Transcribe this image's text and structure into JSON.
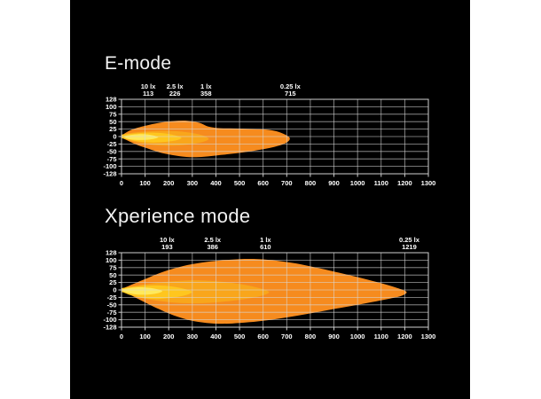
{
  "page": {
    "background": "#ffffff",
    "panel_background": "#000000",
    "grid_color": "#d8d8d8",
    "border_color": "#cfcfcf",
    "label_color": "#ffffff",
    "muted_label_color": "#5f5f5f"
  },
  "chart_data": [
    {
      "type": "area",
      "title": "E-mode",
      "x_ticks": [
        0,
        100,
        200,
        300,
        400,
        500,
        600,
        700,
        800,
        900,
        1000,
        1100,
        1200,
        1300
      ],
      "y_ticks": [
        128,
        100,
        75,
        50,
        25,
        0,
        -25,
        -50,
        -75,
        -100,
        -128
      ],
      "muted_first_y_tick": false,
      "lux_markers": [
        {
          "label": "10 lx",
          "value": 113
        },
        {
          "label": "2.5 lx",
          "value": 226
        },
        {
          "label": "1 lx",
          "value": 358
        },
        {
          "label": "0.25 lx",
          "value": 715
        }
      ],
      "contours": [
        {
          "label": "0.25 lx",
          "color": "#F68B1E",
          "points": [
            [
              0,
              3
            ],
            [
              40,
              22
            ],
            [
              100,
              36
            ],
            [
              160,
              46
            ],
            [
              220,
              52
            ],
            [
              280,
              53
            ],
            [
              330,
              46
            ],
            [
              370,
              33
            ],
            [
              420,
              28
            ],
            [
              480,
              27
            ],
            [
              540,
              26
            ],
            [
              600,
              24
            ],
            [
              650,
              19
            ],
            [
              695,
              6
            ],
            [
              713,
              -8
            ],
            [
              690,
              -24
            ],
            [
              630,
              -38
            ],
            [
              560,
              -48
            ],
            [
              490,
              -56
            ],
            [
              420,
              -62
            ],
            [
              350,
              -68
            ],
            [
              290,
              -69
            ],
            [
              230,
              -64
            ],
            [
              170,
              -55
            ],
            [
              110,
              -40
            ],
            [
              60,
              -26
            ],
            [
              20,
              -11
            ],
            [
              0,
              -3
            ]
          ]
        },
        {
          "label": "1 lx",
          "color": "#F9A61B",
          "points": [
            [
              0,
              6
            ],
            [
              50,
              13
            ],
            [
              110,
              17
            ],
            [
              170,
              19
            ],
            [
              230,
              18
            ],
            [
              280,
              14
            ],
            [
              330,
              7
            ],
            [
              362,
              -2
            ],
            [
              368,
              -10
            ],
            [
              340,
              -19
            ],
            [
              290,
              -26
            ],
            [
              230,
              -30
            ],
            [
              170,
              -30
            ],
            [
              110,
              -26
            ],
            [
              60,
              -19
            ],
            [
              20,
              -10
            ],
            [
              0,
              -4
            ]
          ]
        },
        {
          "label": "2.5 lx",
          "color": "#FFC61E",
          "points": [
            [
              0,
              5
            ],
            [
              50,
              10
            ],
            [
              110,
              13
            ],
            [
              165,
              12
            ],
            [
              210,
              7
            ],
            [
              245,
              0
            ],
            [
              253,
              -6
            ],
            [
              230,
              -13
            ],
            [
              185,
              -18
            ],
            [
              135,
              -20
            ],
            [
              85,
              -18
            ],
            [
              40,
              -12
            ],
            [
              10,
              -7
            ],
            [
              0,
              -4
            ]
          ]
        },
        {
          "label": "10 lx",
          "color": "#FFE95C",
          "points": [
            [
              12,
              1
            ],
            [
              45,
              6
            ],
            [
              85,
              8
            ],
            [
              120,
              6
            ],
            [
              148,
              1
            ],
            [
              155,
              -3
            ],
            [
              135,
              -8
            ],
            [
              100,
              -11
            ],
            [
              60,
              -11
            ],
            [
              28,
              -8
            ],
            [
              12,
              -3
            ]
          ]
        }
      ]
    },
    {
      "type": "area",
      "title": "Xperience mode",
      "x_ticks": [
        0,
        100,
        200,
        300,
        400,
        500,
        600,
        700,
        800,
        900,
        1000,
        1100,
        1200,
        1300
      ],
      "y_ticks": [
        128,
        100,
        75,
        50,
        25,
        0,
        -25,
        -50,
        -75,
        -100,
        -128
      ],
      "muted_first_y_tick": true,
      "lux_markers": [
        {
          "label": "10 lx",
          "value": 193
        },
        {
          "label": "2.5 lx",
          "value": 386
        },
        {
          "label": "1 lx",
          "value": 610
        },
        {
          "label": "0.25 lx",
          "value": 1219
        }
      ],
      "contours": [
        {
          "label": "0.25 lx",
          "color": "#F68B1E",
          "points": [
            [
              0,
              2
            ],
            [
              50,
              20
            ],
            [
              110,
              40
            ],
            [
              180,
              62
            ],
            [
              260,
              80
            ],
            [
              340,
              92
            ],
            [
              420,
              99
            ],
            [
              500,
              104
            ],
            [
              580,
              104
            ],
            [
              660,
              98
            ],
            [
              740,
              89
            ],
            [
              820,
              76
            ],
            [
              900,
              62
            ],
            [
              980,
              47
            ],
            [
              1060,
              31
            ],
            [
              1130,
              16
            ],
            [
              1185,
              2
            ],
            [
              1208,
              -8
            ],
            [
              1185,
              -20
            ],
            [
              1130,
              -30
            ],
            [
              1060,
              -41
            ],
            [
              980,
              -53
            ],
            [
              900,
              -64
            ],
            [
              820,
              -76
            ],
            [
              740,
              -87
            ],
            [
              660,
              -97
            ],
            [
              580,
              -106
            ],
            [
              500,
              -112
            ],
            [
              430,
              -115
            ],
            [
              360,
              -112
            ],
            [
              290,
              -102
            ],
            [
              220,
              -85
            ],
            [
              160,
              -65
            ],
            [
              110,
              -46
            ],
            [
              65,
              -28
            ],
            [
              25,
              -11
            ],
            [
              0,
              -3
            ]
          ]
        },
        {
          "label": "1 lx",
          "color": "#F9A61B",
          "points": [
            [
              0,
              5
            ],
            [
              70,
              15
            ],
            [
              150,
              24
            ],
            [
              240,
              30
            ],
            [
              330,
              32
            ],
            [
              420,
              28
            ],
            [
              500,
              20
            ],
            [
              570,
              9
            ],
            [
              618,
              -3
            ],
            [
              620,
              -12
            ],
            [
              575,
              -23
            ],
            [
              500,
              -33
            ],
            [
              410,
              -41
            ],
            [
              320,
              -45
            ],
            [
              230,
              -43
            ],
            [
              150,
              -36
            ],
            [
              80,
              -26
            ],
            [
              30,
              -13
            ],
            [
              0,
              -5
            ]
          ]
        },
        {
          "label": "2.5 lx",
          "color": "#FFC61E",
          "points": [
            [
              0,
              5
            ],
            [
              55,
              11
            ],
            [
              120,
              15
            ],
            [
              185,
              14
            ],
            [
              240,
              8
            ],
            [
              285,
              -1
            ],
            [
              298,
              -8
            ],
            [
              270,
              -18
            ],
            [
              215,
              -26
            ],
            [
              150,
              -30
            ],
            [
              90,
              -27
            ],
            [
              40,
              -18
            ],
            [
              10,
              -9
            ],
            [
              0,
              -5
            ]
          ]
        },
        {
          "label": "10 lx",
          "color": "#FFE95C",
          "points": [
            [
              4,
              2
            ],
            [
              40,
              7
            ],
            [
              85,
              9
            ],
            [
              130,
              6
            ],
            [
              163,
              0
            ],
            [
              172,
              -5
            ],
            [
              148,
              -12
            ],
            [
              105,
              -16
            ],
            [
              60,
              -15
            ],
            [
              22,
              -9
            ],
            [
              4,
              -3
            ]
          ]
        }
      ]
    }
  ]
}
